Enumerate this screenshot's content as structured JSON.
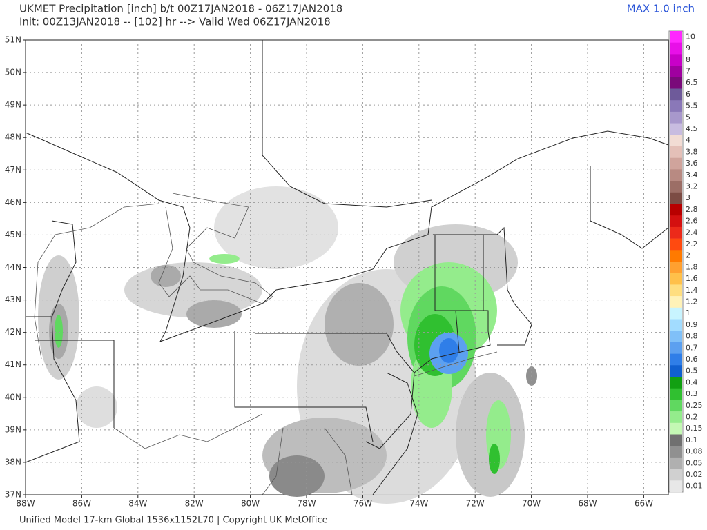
{
  "header": {
    "title": "UKMET Precipitation [inch] b/t 00Z17JAN2018 - 06Z17JAN2018",
    "subtitle": "Init: 00Z13JAN2018 -- [102] hr --> Valid Wed 06Z17JAN2018",
    "max_label": "MAX 1.0 inch"
  },
  "map": {
    "lat_labels": [
      "51N",
      "50N",
      "49N",
      "48N",
      "47N",
      "46N",
      "45N",
      "44N",
      "43N",
      "42N",
      "41N",
      "40N",
      "39N",
      "38N",
      "37N"
    ],
    "lon_labels": [
      "88W",
      "86W",
      "84W",
      "82W",
      "80W",
      "78W",
      "76W",
      "74W",
      "72W",
      "70W",
      "68W",
      "66W"
    ]
  },
  "colorbar": {
    "levels": [
      {
        "value": 10,
        "color": "#ff28ff"
      },
      {
        "value": 9,
        "color": "#e810e8"
      },
      {
        "value": 8,
        "color": "#c800c8"
      },
      {
        "value": 7,
        "color": "#a000a0"
      },
      {
        "value": 6.5,
        "color": "#7a0a7a"
      },
      {
        "value": 6,
        "color": "#6e5a9a"
      },
      {
        "value": 5.5,
        "color": "#8a78b8"
      },
      {
        "value": 5,
        "color": "#a898cc"
      },
      {
        "value": 4.5,
        "color": "#c8bce0"
      },
      {
        "value": 4,
        "color": "#f2dcd4"
      },
      {
        "value": 3.8,
        "color": "#e4c0b8"
      },
      {
        "value": 3.6,
        "color": "#d0a49c"
      },
      {
        "value": 3.4,
        "color": "#b88a82"
      },
      {
        "value": 3.2,
        "color": "#9c6e66"
      },
      {
        "value": 3,
        "color": "#7c4c44"
      },
      {
        "value": 2.8,
        "color": "#b80000"
      },
      {
        "value": 2.6,
        "color": "#d41010"
      },
      {
        "value": 2.4,
        "color": "#ec2a1a"
      },
      {
        "value": 2.2,
        "color": "#ff4a10"
      },
      {
        "value": 2,
        "color": "#ff7a00"
      },
      {
        "value": 1.8,
        "color": "#ffa030"
      },
      {
        "value": 1.6,
        "color": "#ffc04a"
      },
      {
        "value": 1.4,
        "color": "#ffde80"
      },
      {
        "value": 1.2,
        "color": "#fff2b8"
      },
      {
        "value": 1,
        "color": "#c8f4ff"
      },
      {
        "value": 0.9,
        "color": "#a2dcff"
      },
      {
        "value": 0.8,
        "color": "#80c0f8"
      },
      {
        "value": 0.7,
        "color": "#5ca0f0"
      },
      {
        "value": 0.6,
        "color": "#2f7ee8"
      },
      {
        "value": 0.5,
        "color": "#1060d0"
      },
      {
        "value": 0.4,
        "color": "#12a012"
      },
      {
        "value": 0.3,
        "color": "#30c030"
      },
      {
        "value": 0.25,
        "color": "#60d860"
      },
      {
        "value": 0.2,
        "color": "#94ec8c"
      },
      {
        "value": 0.15,
        "color": "#c4f8b4"
      },
      {
        "value": 0.1,
        "color": "#707070"
      },
      {
        "value": 0.08,
        "color": "#909090"
      },
      {
        "value": 0.05,
        "color": "#b0b0b0"
      },
      {
        "value": 0.02,
        "color": "#d0d0d0"
      },
      {
        "value": 0.01,
        "color": "#e8e8e8"
      }
    ]
  },
  "footer": "Unified Model 17-km Global 1536x1152L70 | Copyright UK MetOffice"
}
